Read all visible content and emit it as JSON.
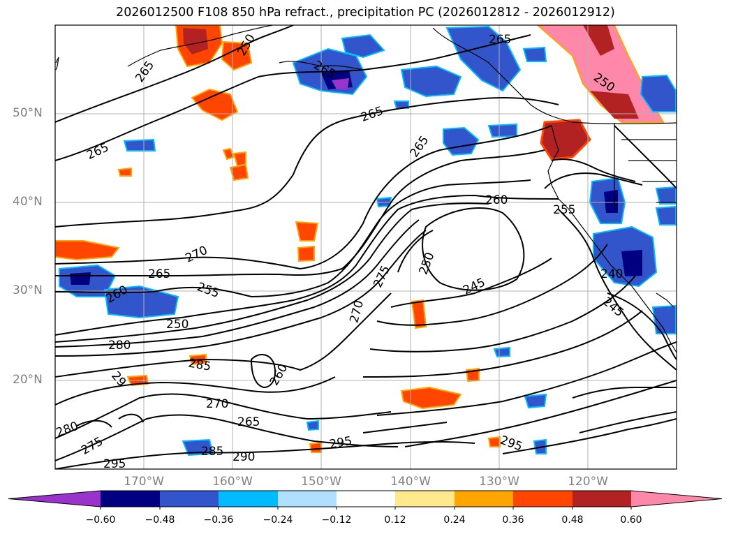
{
  "title": "2026012500 F108 850 hPa refract., precipitation PC (2026012812 - 2026012912)",
  "map": {
    "lat_labels": [
      "50°N",
      "40°N",
      "30°N",
      "20°N"
    ],
    "lon_labels": [
      "170°W",
      "160°W",
      "150°W",
      "140°W",
      "130°W",
      "120°W"
    ],
    "contour_labels": [
      "265",
      "265",
      "265",
      "265",
      "265",
      "265",
      "260",
      "255",
      "250",
      "250",
      "245",
      "240",
      "245",
      "270",
      "265",
      "260",
      "255",
      "250",
      "280",
      "285",
      "29",
      "270",
      "265",
      "280",
      "275",
      "285",
      "290",
      "295",
      "295",
      "295",
      "270",
      "275",
      "260",
      "250"
    ]
  },
  "colorbar": {
    "ticks": [
      "−0.60",
      "−0.48",
      "−0.36",
      "−0.24",
      "−0.12",
      "0.12",
      "0.24",
      "0.36",
      "0.48",
      "0.60"
    ],
    "colors": [
      "#9933cc",
      "#000080",
      "#3355cc",
      "#00bbff",
      "#b0e0ff",
      "#ffffff",
      "#ffe98c",
      "#ffa500",
      "#ff4500",
      "#b22222",
      "#ff88aa"
    ]
  },
  "legend_colors": {
    "grid": "#b0b0b0",
    "contour": "#000000",
    "coast": "#000000"
  }
}
